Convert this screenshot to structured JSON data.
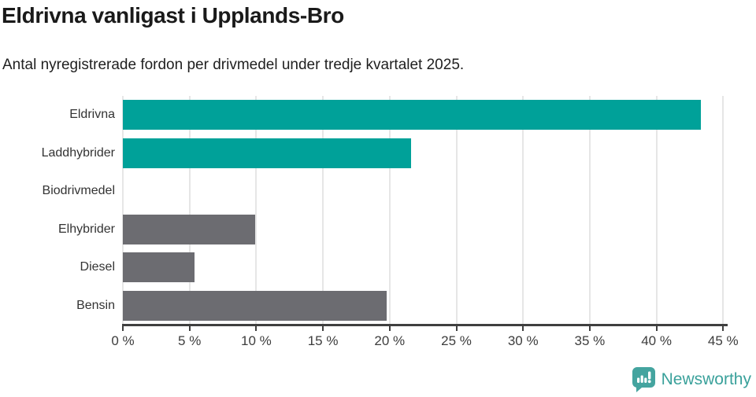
{
  "header": {
    "title": "Eldrivna vanligast i Upplands-Bro",
    "subtitle": "Antal nyregistrerade fordon per drivmedel under tredje kvartalet 2025."
  },
  "chart_data": {
    "type": "bar",
    "orientation": "horizontal",
    "title": "Eldrivna vanligast i Upplands-Bro",
    "subtitle": "Antal nyregistrerade fordon per drivmedel under tredje kvartalet 2025.",
    "categories": [
      "Eldrivna",
      "Laddhybrider",
      "Biodrivmedel",
      "Elhybrider",
      "Diesel",
      "Bensin"
    ],
    "values": [
      43.3,
      21.6,
      0,
      9.9,
      5.4,
      19.8
    ],
    "unit": "%",
    "xlim": [
      0,
      45
    ],
    "xtick_step": 5,
    "xtick_labels": [
      "0 %",
      "5 %",
      "10 %",
      "15 %",
      "20 %",
      "25 %",
      "30 %",
      "35 %",
      "40 %",
      "45 %"
    ],
    "grid": true,
    "legend": "none",
    "bar_colors": [
      "#00a199",
      "#00a199",
      "#6c6c71",
      "#6c6c71",
      "#6c6c71",
      "#6c6c71"
    ],
    "highlight_color": "#00a199",
    "base_color": "#6c6c71"
  },
  "footer": {
    "brand": "Newsworthy",
    "brand_color": "#3aa19b",
    "logo_icon": "newsworthy-pin-barchart-icon"
  }
}
